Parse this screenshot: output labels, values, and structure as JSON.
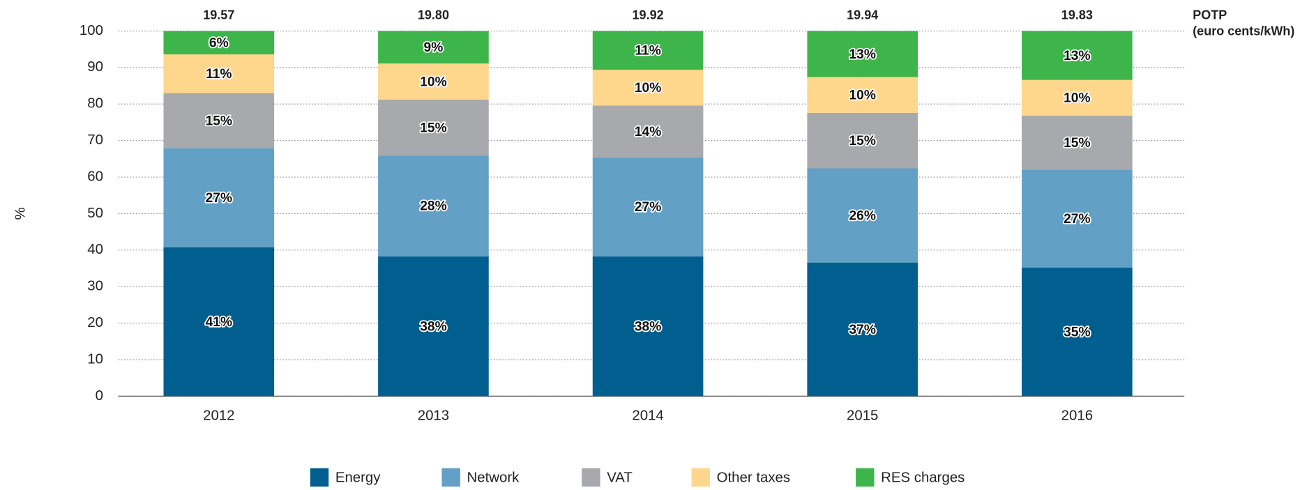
{
  "chart_data": {
    "type": "stacked_bar",
    "y_label": "%",
    "categories": [
      "2012",
      "2013",
      "2014",
      "2015",
      "2016"
    ],
    "ylim": [
      0,
      100
    ],
    "yticks": [
      0,
      10,
      20,
      30,
      40,
      50,
      60,
      70,
      80,
      90,
      100
    ],
    "grid": true,
    "legend": "bottom",
    "series": [
      {
        "name": "Energy",
        "color": "#005f8f",
        "values": [
          40.8,
          38.3,
          38.3,
          36.6,
          35.2
        ],
        "value_labels": [
          "41%",
          "38%",
          "38%",
          "37%",
          "35%"
        ]
      },
      {
        "name": "Network",
        "color": "#62a0c6",
        "values": [
          27.1,
          27.6,
          27.1,
          25.8,
          26.8
        ],
        "value_labels": [
          "27%",
          "28%",
          "27%",
          "26%",
          "27%"
        ]
      },
      {
        "name": "VAT",
        "color": "#a7a9ac",
        "values": [
          15.1,
          15.3,
          14.2,
          15.2,
          14.8
        ],
        "value_labels": [
          "15%",
          "15%",
          "14%",
          "15%",
          "15%"
        ]
      },
      {
        "name": "Other taxes",
        "color": "#fed68c",
        "values": [
          10.6,
          9.9,
          9.8,
          9.8,
          9.8
        ],
        "value_labels": [
          "11%",
          "10%",
          "10%",
          "10%",
          "10%"
        ]
      },
      {
        "name": "RES charges",
        "color": "#3db54a",
        "values": [
          6.4,
          8.9,
          10.6,
          12.6,
          13.4
        ],
        "value_labels": [
          "6%",
          "9%",
          "11%",
          "13%",
          "13%"
        ]
      }
    ],
    "totals": {
      "title": "POTP",
      "subtitle": "(euro cents/kWh)",
      "values": [
        19.57,
        19.8,
        19.92,
        19.94,
        19.83
      ],
      "value_labels": [
        "19.57",
        "19.80",
        "19.92",
        "19.94",
        "19.83"
      ]
    }
  }
}
